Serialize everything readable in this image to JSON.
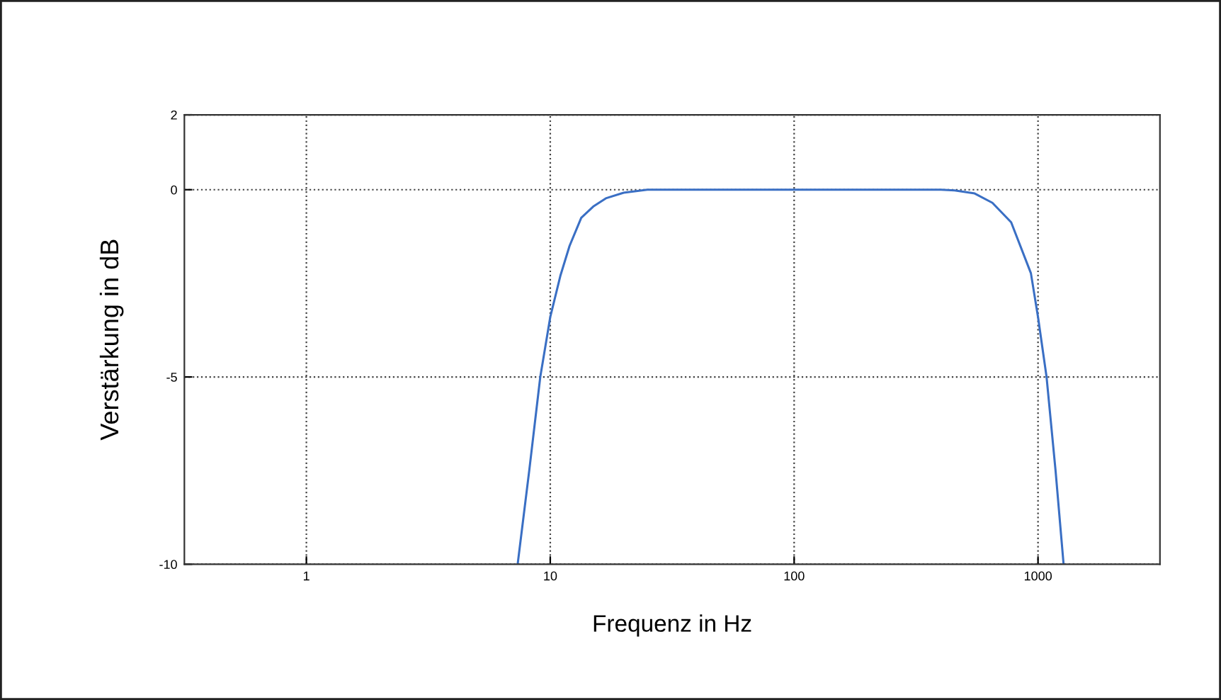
{
  "chart_data": {
    "type": "line",
    "xlabel": "Frequenz in Hz",
    "ylabel": "Verstärkung in dB",
    "log": "x",
    "grid": true,
    "line_style": "solid",
    "xlim": [
      0.316,
      3162
    ],
    "xticks": [
      1,
      10,
      100,
      1000
    ],
    "ylim": [
      -10,
      2
    ],
    "yticks": [
      {
        "value": -10,
        "label": "-10"
      },
      {
        "value": -5,
        "label": "-5"
      },
      0,
      2
    ],
    "series": [
      {
        "color": "#3a6fc4",
        "x": [
          7.35,
          8.2,
          9.1,
          10,
          11,
          12,
          13.4,
          15,
          16.9,
          20,
          25,
          100,
          400,
          455,
          550,
          650,
          776,
          935,
          1000,
          1084,
          1180,
          1273
        ],
        "values": [
          -10,
          -7.5,
          -5,
          -3.4,
          -2.3,
          -1.5,
          -0.75,
          -0.45,
          -0.23,
          -0.08,
          0,
          0,
          0,
          -0.02,
          -0.1,
          -0.35,
          -0.87,
          -2.23,
          -3.4,
          -5,
          -7.5,
          -10
        ]
      }
    ]
  }
}
